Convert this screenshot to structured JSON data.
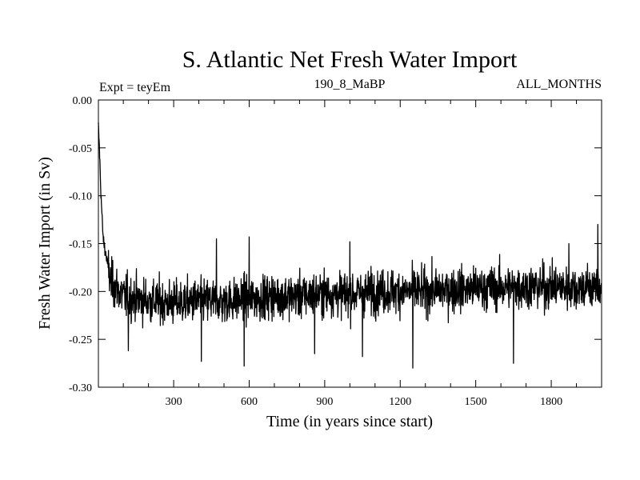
{
  "chart_data": {
    "type": "line",
    "title": "S. Atlantic Net Fresh Water Import",
    "subtitle_left": "Expt = teyEm",
    "subtitle_center": "190_8_MaBP",
    "subtitle_right": "ALL_MONTHS",
    "xlabel": "Time (in years since start)",
    "ylabel": "Fresh Water Import (in Sv)",
    "xlim": [
      1,
      2000
    ],
    "ylim": [
      -0.3,
      0.0
    ],
    "xticks": [
      300,
      600,
      900,
      1200,
      1500,
      1800
    ],
    "xtick_labels": [
      "300",
      "600",
      "900",
      "1200",
      "1500",
      "1800"
    ],
    "yticks": [
      0.0,
      -0.05,
      -0.1,
      -0.15,
      -0.2,
      -0.25,
      -0.3
    ],
    "ytick_labels": [
      "0.00",
      "-0.05",
      "-0.10",
      "-0.15",
      "-0.20",
      "-0.25",
      "-0.30"
    ],
    "series": [
      {
        "name": "S. Atlantic net fresh water import",
        "color": "#000000",
        "points": [
          [
            1,
            -0.028
          ],
          [
            5,
            -0.05
          ],
          [
            10,
            -0.09
          ],
          [
            15,
            -0.12
          ],
          [
            20,
            -0.145
          ],
          [
            30,
            -0.16
          ],
          [
            50,
            -0.19
          ],
          [
            100,
            -0.205
          ],
          [
            200,
            -0.21
          ],
          [
            300,
            -0.212
          ],
          [
            400,
            -0.21
          ],
          [
            500,
            -0.21
          ],
          [
            600,
            -0.208
          ],
          [
            700,
            -0.205
          ],
          [
            800,
            -0.205
          ],
          [
            900,
            -0.202
          ],
          [
            1000,
            -0.203
          ],
          [
            1100,
            -0.2
          ],
          [
            1200,
            -0.2
          ],
          [
            1300,
            -0.2
          ],
          [
            1400,
            -0.198
          ],
          [
            1500,
            -0.197
          ],
          [
            1600,
            -0.196
          ],
          [
            1700,
            -0.195
          ],
          [
            1800,
            -0.195
          ],
          [
            1900,
            -0.196
          ],
          [
            2000,
            -0.195
          ]
        ],
        "noise_std": 0.019,
        "spikes": [
          [
            470,
            -0.145
          ],
          [
            600,
            -0.143
          ],
          [
            1000,
            -0.148
          ],
          [
            1870,
            -0.15
          ],
          [
            1985,
            -0.13
          ],
          [
            580,
            -0.278
          ],
          [
            410,
            -0.273
          ],
          [
            1250,
            -0.28
          ],
          [
            1650,
            -0.275
          ],
          [
            1050,
            -0.268
          ],
          [
            120,
            -0.262
          ],
          [
            860,
            -0.265
          ]
        ]
      }
    ]
  }
}
